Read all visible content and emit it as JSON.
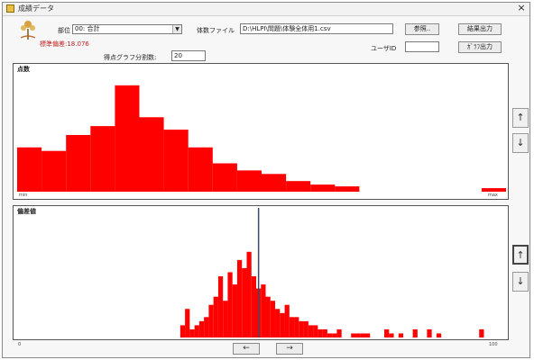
{
  "window": {
    "title": "成績データ",
    "close_label": "×"
  },
  "header": {
    "std_dev_label": "標準偏差:18.076",
    "dept_label": "部位",
    "dept_value": "00: 合計",
    "file_label": "体数ファイル",
    "file_value": "D:\\HLPI\\問題\\体験全体用1.csv",
    "browse_label": "参照..",
    "result_label": "結果出力",
    "chart_out_label": "ｶﾞﾗﾌ出力",
    "divisions_label": "得点グラフ分割数:",
    "divisions_value": "20",
    "user_label": "ユーザID",
    "user_value": ""
  },
  "top_chart": {
    "title": "点数",
    "min_label": "min",
    "max_label": "max"
  },
  "bottom_chart": {
    "title": "偏差値",
    "min_label": "0",
    "max_label": "100"
  },
  "side_buttons": {
    "up": "↑",
    "down": "↓"
  },
  "nav": {
    "prev": "←",
    "next": "→"
  },
  "colors": {
    "bar": "#ff0000",
    "marker": "#3a4a66"
  },
  "chart_data": [
    {
      "type": "bar",
      "title": "点数",
      "x_min_label": "min",
      "x_max_label": "max",
      "values": [
        25,
        23,
        32,
        37,
        60,
        42,
        35,
        25,
        16,
        12,
        10,
        6,
        4,
        3,
        0,
        0,
        0,
        0,
        0,
        2
      ],
      "ylim": [
        0,
        66
      ]
    },
    {
      "type": "bar",
      "title": "偏差値",
      "xlim": [
        0,
        100
      ],
      "x": [
        34,
        35,
        36,
        37,
        38,
        39,
        40,
        41,
        42,
        43,
        44,
        45,
        46,
        47,
        48,
        49,
        50,
        51,
        52,
        53,
        54,
        55,
        56,
        57,
        58,
        59,
        60,
        61,
        62,
        63,
        64,
        65,
        66,
        67,
        70,
        71,
        72,
        73,
        77,
        78,
        80,
        83,
        86,
        88,
        97
      ],
      "values": [
        6,
        14,
        4,
        6,
        8,
        10,
        16,
        20,
        30,
        18,
        32,
        26,
        38,
        34,
        42,
        30,
        24,
        26,
        20,
        18,
        14,
        12,
        16,
        10,
        10,
        8,
        8,
        6,
        6,
        4,
        4,
        2,
        2,
        4,
        2,
        2,
        2,
        2,
        4,
        2,
        2,
        4,
        4,
        2,
        4
      ],
      "marker_x": 50,
      "ylim": [
        0,
        60
      ]
    }
  ]
}
